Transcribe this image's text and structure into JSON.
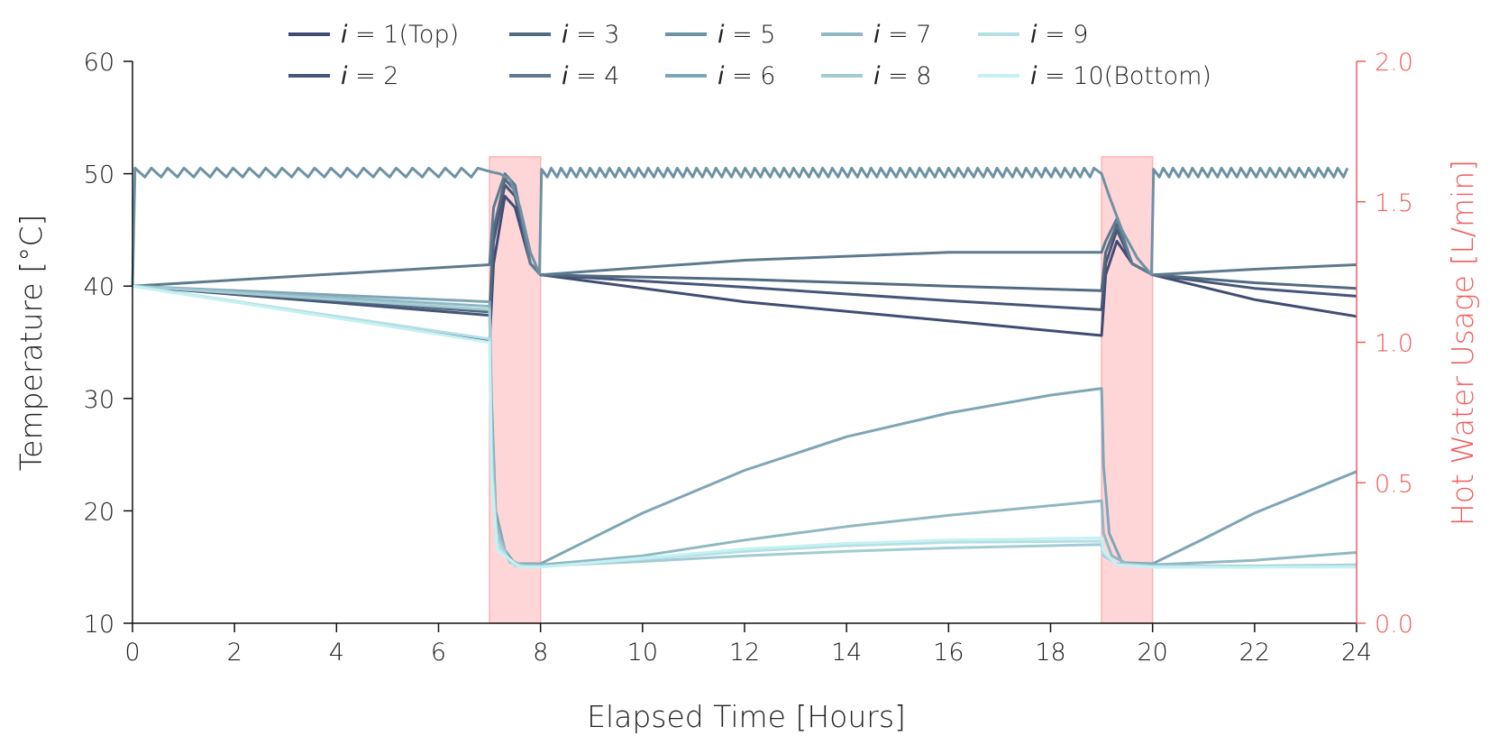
{
  "chart_data": {
    "type": "line",
    "xlabel": "Elapsed Time [Hours]",
    "ylabel": "Temperature [°C]",
    "y2label": "Hot Water Usage [L/min]",
    "xlim": [
      0,
      24
    ],
    "ylim": [
      10,
      60
    ],
    "y2lim": [
      0,
      2.0
    ],
    "xticks": [
      "0",
      "2",
      "4",
      "6",
      "8",
      "10",
      "12",
      "14",
      "16",
      "18",
      "20",
      "22",
      "24"
    ],
    "yticks": [
      "10",
      "20",
      "30",
      "40",
      "50",
      "60"
    ],
    "y2ticks": [
      "0.0",
      "0.5",
      "1.0",
      "1.5",
      "2.0"
    ],
    "grid": false,
    "legend_position": "top",
    "usage_color": "#f25c5c",
    "usage_periods": [
      {
        "start": 7,
        "end": 8,
        "value": 1.66
      },
      {
        "start": 19,
        "end": 20,
        "value": 1.66
      }
    ],
    "series": [
      {
        "var": "i",
        "eq": " = ",
        "name": "1(Top)",
        "color": "#414c74",
        "points": [
          [
            0,
            40
          ],
          [
            7,
            35.1
          ],
          [
            7.08,
            42
          ],
          [
            7.3,
            48
          ],
          [
            7.5,
            47
          ],
          [
            7.8,
            42
          ],
          [
            8,
            41
          ],
          [
            12,
            38.6
          ],
          [
            16,
            36.9
          ],
          [
            19,
            35.6
          ],
          [
            19.08,
            41
          ],
          [
            19.3,
            44
          ],
          [
            19.6,
            42
          ],
          [
            20,
            41
          ],
          [
            22,
            38.8
          ],
          [
            24,
            37.3
          ]
        ]
      },
      {
        "var": "i",
        "eq": " = ",
        "name": "2",
        "color": "#465578",
        "points": [
          [
            0,
            40
          ],
          [
            7,
            37.4
          ],
          [
            7.08,
            44
          ],
          [
            7.3,
            49
          ],
          [
            7.5,
            48
          ],
          [
            7.8,
            42
          ],
          [
            8,
            41
          ],
          [
            12,
            39.9
          ],
          [
            16,
            38.7
          ],
          [
            19,
            37.9
          ],
          [
            19.08,
            42
          ],
          [
            19.3,
            45
          ],
          [
            19.6,
            42
          ],
          [
            20,
            41
          ],
          [
            22,
            39.8
          ],
          [
            24,
            39.1
          ]
        ]
      },
      {
        "var": "i",
        "eq": " = ",
        "name": "3",
        "color": "#526a80",
        "points": [
          [
            0,
            40
          ],
          [
            7,
            37.7
          ],
          [
            7.08,
            45
          ],
          [
            7.3,
            49.5
          ],
          [
            7.5,
            48.5
          ],
          [
            7.8,
            42
          ],
          [
            8,
            41
          ],
          [
            12,
            40.6
          ],
          [
            16,
            40
          ],
          [
            19,
            39.6
          ],
          [
            19.08,
            43
          ],
          [
            19.3,
            45.5
          ],
          [
            19.6,
            42
          ],
          [
            20,
            41
          ],
          [
            22,
            40.3
          ],
          [
            24,
            39.8
          ]
        ]
      },
      {
        "var": "i",
        "eq": " = ",
        "name": "4",
        "color": "#5d7a8e",
        "points": [
          [
            0,
            40
          ],
          [
            7,
            41.9
          ],
          [
            7.08,
            47
          ],
          [
            7.3,
            50
          ],
          [
            7.5,
            49
          ],
          [
            7.8,
            42
          ],
          [
            8,
            41
          ],
          [
            12,
            42.3
          ],
          [
            16,
            43
          ],
          [
            19,
            43
          ],
          [
            19.08,
            44
          ],
          [
            19.3,
            46
          ],
          [
            19.6,
            42
          ],
          [
            20,
            41
          ],
          [
            22,
            41.5
          ],
          [
            24,
            41.9
          ]
        ]
      },
      {
        "var": "i",
        "eq": " = ",
        "name": "5",
        "color": "#6d92a4",
        "points": [
          [
            0,
            40
          ],
          [
            0.05,
            50.5
          ]
        ],
        "zigzag": true
      },
      {
        "var": "i",
        "eq": " = ",
        "name": "6",
        "color": "#7ea6b6",
        "points": [
          [
            0,
            40
          ],
          [
            7,
            38.6
          ],
          [
            7.04,
            30
          ],
          [
            7.12,
            20
          ],
          [
            7.3,
            16.5
          ],
          [
            7.5,
            15.3
          ],
          [
            8,
            15.3
          ],
          [
            10,
            19.8
          ],
          [
            12,
            23.6
          ],
          [
            14,
            26.6
          ],
          [
            16,
            28.7
          ],
          [
            18,
            30.3
          ],
          [
            19,
            30.9
          ],
          [
            19.04,
            24
          ],
          [
            19.15,
            18
          ],
          [
            19.4,
            15.4
          ],
          [
            20,
            15.3
          ],
          [
            21,
            17.5
          ],
          [
            22,
            19.8
          ],
          [
            24,
            23.5
          ]
        ]
      },
      {
        "var": "i",
        "eq": " = ",
        "name": "7",
        "color": "#90b8c2",
        "points": [
          [
            0,
            40
          ],
          [
            7,
            38.2
          ],
          [
            7.04,
            28
          ],
          [
            7.12,
            19
          ],
          [
            7.35,
            15.8
          ],
          [
            7.6,
            15.2
          ],
          [
            8,
            15.2
          ],
          [
            10,
            16
          ],
          [
            12,
            17.4
          ],
          [
            14,
            18.6
          ],
          [
            16,
            19.6
          ],
          [
            19,
            20.9
          ],
          [
            19.04,
            18
          ],
          [
            19.2,
            16
          ],
          [
            19.5,
            15.3
          ],
          [
            20,
            15.2
          ],
          [
            22,
            15.6
          ],
          [
            24,
            16.3
          ]
        ]
      },
      {
        "var": "i",
        "eq": " = ",
        "name": "8",
        "color": "#a3cbd3",
        "points": [
          [
            0,
            40
          ],
          [
            7,
            37.9
          ],
          [
            7.04,
            26
          ],
          [
            7.12,
            18
          ],
          [
            7.4,
            15.4
          ],
          [
            7.7,
            15.1
          ],
          [
            8,
            15.1
          ],
          [
            10,
            15.5
          ],
          [
            12,
            16
          ],
          [
            14,
            16.4
          ],
          [
            16,
            16.7
          ],
          [
            19,
            17
          ],
          [
            19.04,
            16
          ],
          [
            19.3,
            15.3
          ],
          [
            20,
            15.1
          ],
          [
            22,
            15.1
          ],
          [
            24,
            15.2
          ]
        ]
      },
      {
        "var": "i",
        "eq": " = ",
        "name": "9",
        "color": "#b4dfe3",
        "points": [
          [
            0,
            40
          ],
          [
            7,
            35.3
          ],
          [
            7.04,
            24
          ],
          [
            7.15,
            17
          ],
          [
            7.5,
            15.1
          ],
          [
            8,
            15
          ],
          [
            10,
            15.7
          ],
          [
            12,
            16.4
          ],
          [
            14,
            16.9
          ],
          [
            16,
            17.2
          ],
          [
            19,
            17.3
          ],
          [
            19.04,
            16.2
          ],
          [
            19.3,
            15.2
          ],
          [
            20,
            15
          ],
          [
            22,
            15
          ],
          [
            24,
            15.1
          ]
        ]
      },
      {
        "var": "i",
        "eq": " = ",
        "name": "10(Bottom)",
        "color": "#c4f1f3",
        "points": [
          [
            0,
            40
          ],
          [
            7,
            35
          ],
          [
            7.04,
            23
          ],
          [
            7.15,
            16.5
          ],
          [
            7.6,
            15
          ],
          [
            8,
            15
          ],
          [
            10,
            15.8
          ],
          [
            12,
            16.6
          ],
          [
            14,
            17.1
          ],
          [
            16,
            17.4
          ],
          [
            19,
            17.6
          ],
          [
            19.04,
            16.4
          ],
          [
            19.3,
            15.2
          ],
          [
            20,
            15
          ],
          [
            22,
            15
          ],
          [
            24,
            15
          ]
        ]
      }
    ]
  }
}
